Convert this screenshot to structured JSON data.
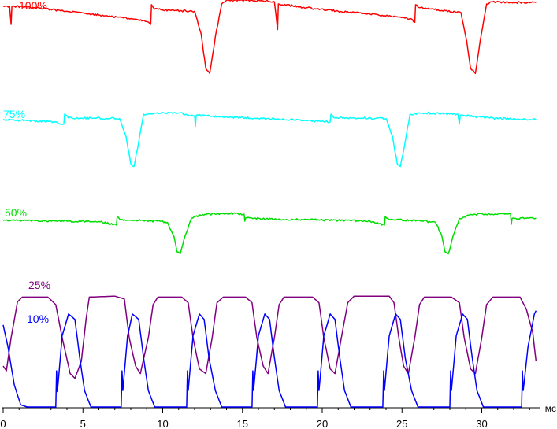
{
  "chart_data": {
    "type": "line",
    "xlabel": "мс",
    "xlim": [
      0,
      33.5
    ],
    "x_ticks": [
      0,
      5,
      10,
      15,
      20,
      25,
      30
    ],
    "series": [
      {
        "name": "100%",
        "color": "#ff0000",
        "level_range": [
          0,
          1
        ],
        "points": [
          [
            0,
            0.97
          ],
          [
            0.4,
            0.97
          ],
          [
            0.5,
            0.72
          ],
          [
            0.55,
            0.97
          ],
          [
            2,
            0.95
          ],
          [
            4,
            0.9
          ],
          [
            6,
            0.85
          ],
          [
            8,
            0.8
          ],
          [
            9,
            0.76
          ],
          [
            9.25,
            0.72
          ],
          [
            9.3,
            0.99
          ],
          [
            9.5,
            0.93
          ],
          [
            10.5,
            0.91
          ],
          [
            12,
            0.9
          ],
          [
            12.4,
            0.6
          ],
          [
            12.7,
            0.12
          ],
          [
            12.95,
            0.05
          ],
          [
            13.3,
            0.55
          ],
          [
            13.7,
            1.0
          ],
          [
            14,
            1.05
          ],
          [
            15.5,
            1.05
          ],
          [
            17,
            1.03
          ],
          [
            17.2,
            0.65
          ],
          [
            17.25,
            1.0
          ],
          [
            19,
            0.95
          ],
          [
            21,
            0.9
          ],
          [
            23,
            0.86
          ],
          [
            25.5,
            0.8
          ],
          [
            25.8,
            0.75
          ],
          [
            25.85,
            0.99
          ],
          [
            26.1,
            0.95
          ],
          [
            27.5,
            0.91
          ],
          [
            28.7,
            0.88
          ],
          [
            29.05,
            0.5
          ],
          [
            29.3,
            0.12
          ],
          [
            29.6,
            0.05
          ],
          [
            29.9,
            0.5
          ],
          [
            30.3,
            1.0
          ],
          [
            30.6,
            1.03
          ],
          [
            32,
            1.02
          ],
          [
            33.4,
            1.02
          ]
        ]
      },
      {
        "name": "75%",
        "color": "#00ffff",
        "level_range": [
          0,
          1
        ],
        "points": [
          [
            0,
            0.9
          ],
          [
            1.5,
            0.88
          ],
          [
            3,
            0.87
          ],
          [
            3.8,
            0.82
          ],
          [
            3.85,
            1.0
          ],
          [
            4.1,
            0.93
          ],
          [
            5.5,
            0.93
          ],
          [
            7.3,
            0.92
          ],
          [
            7.7,
            0.6
          ],
          [
            8,
            0.1
          ],
          [
            8.2,
            0.05
          ],
          [
            8.5,
            0.5
          ],
          [
            8.8,
            1.0
          ],
          [
            9.5,
            1.02
          ],
          [
            11,
            1.02
          ],
          [
            12,
            0.97
          ],
          [
            12.05,
            0.78
          ],
          [
            12.1,
            0.98
          ],
          [
            14,
            0.95
          ],
          [
            16,
            0.92
          ],
          [
            18,
            0.9
          ],
          [
            20.5,
            0.86
          ],
          [
            20.55,
            1.0
          ],
          [
            20.8,
            0.93
          ],
          [
            22.5,
            0.93
          ],
          [
            24,
            0.92
          ],
          [
            24.4,
            0.6
          ],
          [
            24.7,
            0.1
          ],
          [
            24.9,
            0.05
          ],
          [
            25.2,
            0.5
          ],
          [
            25.5,
            1.0
          ],
          [
            26.5,
            1.02
          ],
          [
            28.5,
            1.0
          ],
          [
            28.6,
            0.82
          ],
          [
            28.65,
            0.98
          ],
          [
            30.5,
            0.93
          ],
          [
            32.5,
            0.9
          ],
          [
            33.4,
            0.9
          ]
        ]
      },
      {
        "name": "50%",
        "color": "#00dd00",
        "level_range": [
          0,
          1
        ],
        "points": [
          [
            0,
            0.9
          ],
          [
            2,
            0.89
          ],
          [
            4,
            0.88
          ],
          [
            6,
            0.87
          ],
          [
            7.1,
            0.78
          ],
          [
            7.15,
            1.0
          ],
          [
            7.4,
            0.92
          ],
          [
            9,
            0.9
          ],
          [
            10.3,
            0.85
          ],
          [
            10.7,
            0.5
          ],
          [
            10.9,
            0.1
          ],
          [
            11.1,
            0.05
          ],
          [
            11.4,
            0.5
          ],
          [
            11.8,
            0.95
          ],
          [
            12.5,
            1.05
          ],
          [
            14,
            1.08
          ],
          [
            15.1,
            1.06
          ],
          [
            15.15,
            0.88
          ],
          [
            15.2,
            0.96
          ],
          [
            17,
            0.93
          ],
          [
            19,
            0.92
          ],
          [
            21,
            0.9
          ],
          [
            23,
            0.88
          ],
          [
            23.9,
            0.78
          ],
          [
            23.95,
            1.0
          ],
          [
            24.2,
            0.92
          ],
          [
            26,
            0.9
          ],
          [
            27.1,
            0.85
          ],
          [
            27.5,
            0.5
          ],
          [
            27.7,
            0.1
          ],
          [
            27.9,
            0.05
          ],
          [
            28.2,
            0.5
          ],
          [
            28.6,
            0.95
          ],
          [
            29.3,
            1.05
          ],
          [
            31.8,
            1.07
          ],
          [
            31.85,
            0.8
          ],
          [
            31.9,
            0.95
          ],
          [
            33.4,
            0.96
          ]
        ]
      },
      {
        "name": "25%",
        "color": "#800080",
        "level_range": [
          0,
          1
        ],
        "points": [
          [
            0,
            0.25
          ],
          [
            0.2,
            0.2
          ],
          [
            0.5,
            0.55
          ],
          [
            0.9,
            0.93
          ],
          [
            1.2,
            0.98
          ],
          [
            2.8,
            0.98
          ],
          [
            3.3,
            0.9
          ],
          [
            3.7,
            0.55
          ],
          [
            4.2,
            0.17
          ],
          [
            4.5,
            0.12
          ],
          [
            4.9,
            0.3
          ],
          [
            5.2,
            0.75
          ],
          [
            5.4,
            0.98
          ],
          [
            7,
            0.99
          ],
          [
            7.6,
            0.96
          ],
          [
            7.9,
            0.55
          ],
          [
            8.3,
            0.25
          ],
          [
            8.6,
            0.17
          ],
          [
            9.1,
            0.55
          ],
          [
            9.4,
            0.9
          ],
          [
            9.7,
            0.98
          ],
          [
            11.2,
            0.98
          ],
          [
            11.6,
            0.92
          ],
          [
            11.9,
            0.55
          ],
          [
            12.3,
            0.22
          ],
          [
            12.7,
            0.17
          ],
          [
            13.1,
            0.55
          ],
          [
            13.4,
            0.92
          ],
          [
            13.8,
            0.98
          ],
          [
            15.2,
            0.98
          ],
          [
            15.6,
            0.92
          ],
          [
            15.9,
            0.55
          ],
          [
            16.3,
            0.25
          ],
          [
            16.6,
            0.17
          ],
          [
            17,
            0.55
          ],
          [
            17.3,
            0.9
          ],
          [
            17.6,
            0.98
          ],
          [
            19.4,
            0.98
          ],
          [
            19.8,
            0.92
          ],
          [
            20.1,
            0.55
          ],
          [
            20.5,
            0.22
          ],
          [
            20.8,
            0.17
          ],
          [
            21.2,
            0.55
          ],
          [
            21.6,
            0.92
          ],
          [
            22,
            0.99
          ],
          [
            24.2,
            0.99
          ],
          [
            24.5,
            0.92
          ],
          [
            24.8,
            0.55
          ],
          [
            25.1,
            0.25
          ],
          [
            25.4,
            0.17
          ],
          [
            25.8,
            0.55
          ],
          [
            26.1,
            0.9
          ],
          [
            26.4,
            0.98
          ],
          [
            28.1,
            0.98
          ],
          [
            28.6,
            0.92
          ],
          [
            28.9,
            0.55
          ],
          [
            29.3,
            0.22
          ],
          [
            29.6,
            0.17
          ],
          [
            30,
            0.55
          ],
          [
            30.3,
            0.9
          ],
          [
            30.7,
            0.98
          ],
          [
            32.4,
            0.98
          ],
          [
            32.8,
            0.85
          ],
          [
            33.2,
            0.6
          ],
          [
            33.4,
            0.3
          ]
        ]
      },
      {
        "name": "10%",
        "color": "#0000ff",
        "level_range": [
          0,
          1
        ],
        "points": [
          [
            0,
            0.75
          ],
          [
            0.3,
            0.55
          ],
          [
            0.7,
            0.2
          ],
          [
            1.1,
            0.02
          ],
          [
            1.5,
            0
          ],
          [
            3.3,
            0
          ],
          [
            3.35,
            0.33
          ],
          [
            3.4,
            0.14
          ],
          [
            3.7,
            0.65
          ],
          [
            4.1,
            0.85
          ],
          [
            4.5,
            0.8
          ],
          [
            4.8,
            0.45
          ],
          [
            5.1,
            0.15
          ],
          [
            5.5,
            0
          ],
          [
            7.4,
            0
          ],
          [
            7.45,
            0.33
          ],
          [
            7.5,
            0.15
          ],
          [
            7.8,
            0.65
          ],
          [
            8.1,
            0.85
          ],
          [
            8.5,
            0.8
          ],
          [
            8.8,
            0.45
          ],
          [
            9.1,
            0.15
          ],
          [
            9.5,
            0
          ],
          [
            11.5,
            0
          ],
          [
            11.55,
            0.33
          ],
          [
            11.6,
            0.15
          ],
          [
            11.9,
            0.65
          ],
          [
            12.3,
            0.85
          ],
          [
            12.6,
            0.8
          ],
          [
            12.9,
            0.45
          ],
          [
            13.3,
            0.15
          ],
          [
            13.7,
            0
          ],
          [
            15.6,
            0
          ],
          [
            15.65,
            0.33
          ],
          [
            15.7,
            0.15
          ],
          [
            16,
            0.65
          ],
          [
            16.4,
            0.85
          ],
          [
            16.7,
            0.8
          ],
          [
            17,
            0.45
          ],
          [
            17.3,
            0.15
          ],
          [
            17.7,
            0
          ],
          [
            19.7,
            0
          ],
          [
            19.75,
            0.33
          ],
          [
            19.8,
            0.15
          ],
          [
            20.1,
            0.65
          ],
          [
            20.5,
            0.85
          ],
          [
            20.8,
            0.8
          ],
          [
            21.1,
            0.45
          ],
          [
            21.4,
            0.15
          ],
          [
            21.8,
            0
          ],
          [
            23.8,
            0
          ],
          [
            23.85,
            0.33
          ],
          [
            23.9,
            0.15
          ],
          [
            24.2,
            0.65
          ],
          [
            24.6,
            0.85
          ],
          [
            24.9,
            0.8
          ],
          [
            25.2,
            0.45
          ],
          [
            25.6,
            0.15
          ],
          [
            26,
            0
          ],
          [
            28,
            0
          ],
          [
            28.05,
            0.33
          ],
          [
            28.1,
            0.15
          ],
          [
            28.4,
            0.65
          ],
          [
            28.8,
            0.85
          ],
          [
            29.1,
            0.8
          ],
          [
            29.4,
            0.45
          ],
          [
            29.7,
            0.15
          ],
          [
            30.1,
            0
          ],
          [
            32.5,
            0
          ],
          [
            32.55,
            0.33
          ],
          [
            32.6,
            0.15
          ],
          [
            32.9,
            0.55
          ],
          [
            33.3,
            0.85
          ],
          [
            33.4,
            0.88
          ]
        ]
      }
    ]
  }
}
